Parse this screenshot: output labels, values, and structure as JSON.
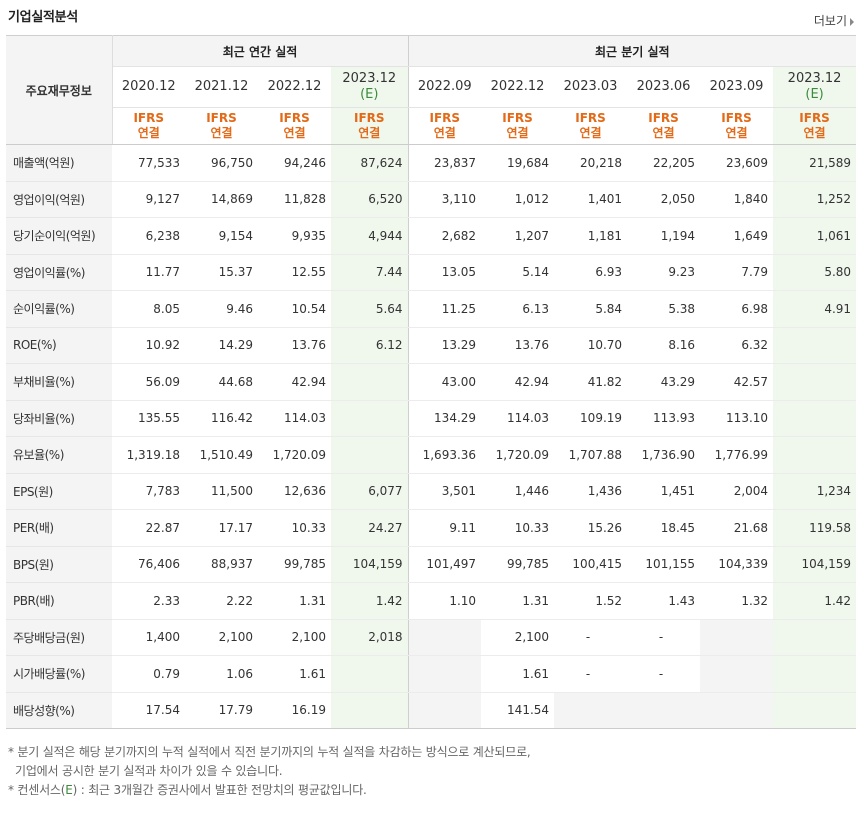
{
  "title": "기업실적분석",
  "more_label": "더보기",
  "header": {
    "col_label": "주요재무정보",
    "annual_label": "최근 연간 실적",
    "quarter_label": "최근 분기 실적",
    "annual_periods": [
      {
        "year": "2020.12",
        "est": ""
      },
      {
        "year": "2021.12",
        "est": ""
      },
      {
        "year": "2022.12",
        "est": ""
      },
      {
        "year": "2023.12",
        "est": "(E)"
      }
    ],
    "quarter_periods": [
      {
        "year": "2022.09",
        "est": ""
      },
      {
        "year": "2022.12",
        "est": ""
      },
      {
        "year": "2023.03",
        "est": ""
      },
      {
        "year": "2023.06",
        "est": ""
      },
      {
        "year": "2023.09",
        "est": ""
      },
      {
        "year": "2023.12",
        "est": "(E)"
      }
    ],
    "ifrs_line1": "IFRS",
    "ifrs_line2": "연결"
  },
  "rows": [
    {
      "label": "매출액(억원)",
      "values": [
        "77,533",
        "96,750",
        "94,246",
        "87,624",
        "23,837",
        "19,684",
        "20,218",
        "22,205",
        "23,609",
        "21,589"
      ]
    },
    {
      "label": "영업이익(억원)",
      "values": [
        "9,127",
        "14,869",
        "11,828",
        "6,520",
        "3,110",
        "1,012",
        "1,401",
        "2,050",
        "1,840",
        "1,252"
      ]
    },
    {
      "label": "당기순이익(억원)",
      "values": [
        "6,238",
        "9,154",
        "9,935",
        "4,944",
        "2,682",
        "1,207",
        "1,181",
        "1,194",
        "1,649",
        "1,061"
      ]
    },
    {
      "label": "영업이익률(%)",
      "values": [
        "11.77",
        "15.37",
        "12.55",
        "7.44",
        "13.05",
        "5.14",
        "6.93",
        "9.23",
        "7.79",
        "5.80"
      ]
    },
    {
      "label": "순이익률(%)",
      "values": [
        "8.05",
        "9.46",
        "10.54",
        "5.64",
        "11.25",
        "6.13",
        "5.84",
        "5.38",
        "6.98",
        "4.91"
      ]
    },
    {
      "label": "ROE(%)",
      "values": [
        "10.92",
        "14.29",
        "13.76",
        "6.12",
        "13.29",
        "13.76",
        "10.70",
        "8.16",
        "6.32",
        ""
      ]
    },
    {
      "label": "부채비율(%)",
      "values": [
        "56.09",
        "44.68",
        "42.94",
        "",
        "43.00",
        "42.94",
        "41.82",
        "43.29",
        "42.57",
        ""
      ]
    },
    {
      "label": "당좌비율(%)",
      "values": [
        "135.55",
        "116.42",
        "114.03",
        "",
        "134.29",
        "114.03",
        "109.19",
        "113.93",
        "113.10",
        ""
      ]
    },
    {
      "label": "유보율(%)",
      "values": [
        "1,319.18",
        "1,510.49",
        "1,720.09",
        "",
        "1,693.36",
        "1,720.09",
        "1,707.88",
        "1,736.90",
        "1,776.99",
        ""
      ]
    },
    {
      "label": "EPS(원)",
      "values": [
        "7,783",
        "11,500",
        "12,636",
        "6,077",
        "3,501",
        "1,446",
        "1,436",
        "1,451",
        "2,004",
        "1,234"
      ]
    },
    {
      "label": "PER(배)",
      "values": [
        "22.87",
        "17.17",
        "10.33",
        "24.27",
        "9.11",
        "10.33",
        "15.26",
        "18.45",
        "21.68",
        "119.58"
      ]
    },
    {
      "label": "BPS(원)",
      "values": [
        "76,406",
        "88,937",
        "99,785",
        "104,159",
        "101,497",
        "99,785",
        "100,415",
        "101,155",
        "104,339",
        "104,159"
      ]
    },
    {
      "label": "PBR(배)",
      "values": [
        "2.33",
        "2.22",
        "1.31",
        "1.42",
        "1.10",
        "1.31",
        "1.52",
        "1.43",
        "1.32",
        "1.42"
      ]
    },
    {
      "label": "주당배당금(원)",
      "values": [
        "1,400",
        "2,100",
        "2,100",
        "2,018",
        "",
        "2,100",
        "-",
        "-",
        "",
        ""
      ]
    },
    {
      "label": "시가배당률(%)",
      "values": [
        "0.79",
        "1.06",
        "1.61",
        "",
        "",
        "1.61",
        "-",
        "-",
        "",
        ""
      ]
    },
    {
      "label": "배당성향(%)",
      "values": [
        "17.54",
        "17.79",
        "16.19",
        "",
        "",
        "141.54",
        "",
        "",
        "",
        ""
      ]
    }
  ],
  "notes": {
    "line1": "* 분기 실적은 해당 분기까지의 누적 실적에서 직전 분기까지의 누적 실적을 차감하는 방식으로 계산되므로,",
    "line2": "기업에서 공시한 분기 실적과 차이가 있을 수 있습니다.",
    "line3_pre": "* 컨센서스(",
    "line3_e": "E",
    "line3_post": ") : 최근 3개월간 증권사에서 발표한 전망치의 평균값입니다."
  }
}
